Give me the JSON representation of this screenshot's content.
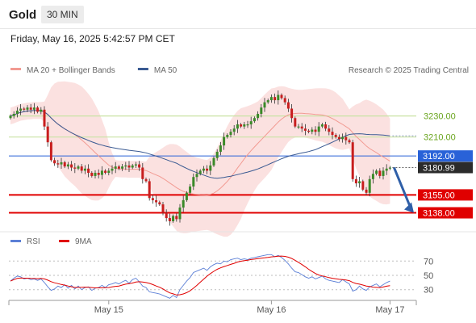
{
  "header": {
    "instrument": "Gold",
    "timeframe": "30 MIN",
    "datetime": "Friday, May 16, 2025 5:42:57 PM CET"
  },
  "chart_data": {
    "type": "candlestick",
    "credit": "Research © 2025 Trading Central",
    "legend": [
      {
        "name": "MA 20 + Bollinger Bands",
        "color": "#f29a92"
      },
      {
        "name": "MA 50",
        "color": "#3a5a92"
      }
    ],
    "y_range": [
      3120,
      3265
    ],
    "x_labels": [
      {
        "label": "May 15",
        "index": 29
      },
      {
        "label": "May 16",
        "index": 77
      },
      {
        "label": "May 17",
        "index": 112
      }
    ],
    "levels": [
      {
        "value": 3230.0,
        "label": "3230.00",
        "color": "#8cc63f",
        "kind": "line"
      },
      {
        "value": 3210.0,
        "label": "3210.00",
        "color": "#8cc63f",
        "kind": "line"
      },
      {
        "value": 3192.0,
        "label": "3192.00",
        "color": "#2962d8",
        "kind": "box"
      },
      {
        "value": 3180.99,
        "label": "3180.99",
        "color": "#2b2b2b",
        "kind": "box"
      },
      {
        "value": 3155.0,
        "label": "3155.00",
        "color": "#e00000",
        "kind": "box"
      },
      {
        "value": 3138.0,
        "label": "3138.00",
        "color": "#e00000",
        "kind": "box"
      }
    ],
    "forecast": {
      "from": 3181,
      "to": 3138
    },
    "closes": [
      3230,
      3232,
      3235,
      3237,
      3236,
      3238,
      3236,
      3238,
      3234,
      3236,
      3220,
      3205,
      3188,
      3185,
      3184,
      3186,
      3182,
      3184,
      3181,
      3180,
      3182,
      3178,
      3180,
      3176,
      3173,
      3176,
      3174,
      3178,
      3176,
      3178,
      3180,
      3182,
      3180,
      3182,
      3183,
      3181,
      3183,
      3184,
      3181,
      3170,
      3168,
      3152,
      3150,
      3148,
      3146,
      3138,
      3133,
      3130,
      3135,
      3132,
      3143,
      3150,
      3157,
      3163,
      3172,
      3175,
      3178,
      3180,
      3178,
      3183,
      3190,
      3196,
      3202,
      3210,
      3212,
      3215,
      3218,
      3222,
      3220,
      3222,
      3222,
      3225,
      3228,
      3232,
      3238,
      3243,
      3245,
      3248,
      3245,
      3250,
      3247,
      3243,
      3237,
      3228,
      3220,
      3220,
      3218,
      3216,
      3215,
      3217,
      3215,
      3220,
      3222,
      3218,
      3215,
      3212,
      3210,
      3208,
      3210,
      3207,
      3205,
      3170,
      3166,
      3168,
      3160,
      3157,
      3170,
      3175,
      3178,
      3173,
      3178,
      3180,
      3181
    ],
    "rsi": {
      "legend": [
        {
          "name": "RSI",
          "color": "#5b7fd6"
        },
        {
          "name": "9MA",
          "color": "#e00000"
        }
      ],
      "levels": [
        70,
        50,
        30
      ],
      "y_range": [
        15,
        85
      ],
      "values": [
        42,
        46,
        49,
        48,
        45,
        46,
        44,
        45,
        43,
        45,
        40,
        34,
        29,
        31,
        35,
        33,
        37,
        32,
        36,
        31,
        35,
        30,
        33,
        34,
        29,
        32,
        33,
        36,
        33,
        37,
        38,
        40,
        38,
        41,
        43,
        39,
        44,
        46,
        41,
        35,
        33,
        27,
        26,
        25,
        24,
        22,
        20,
        18,
        22,
        19,
        30,
        36,
        42,
        47,
        54,
        56,
        58,
        60,
        57,
        62,
        65,
        67,
        66,
        70,
        69,
        72,
        73,
        74,
        72,
        73,
        72,
        74,
        75,
        76,
        77,
        78,
        79,
        79,
        76,
        78,
        75,
        71,
        66,
        60,
        55,
        54,
        51,
        48,
        46,
        48,
        45,
        47,
        49,
        45,
        43,
        42,
        41,
        40,
        44,
        41,
        38,
        28,
        30,
        35,
        31,
        29,
        34,
        36,
        38,
        34,
        37,
        40,
        42
      ]
    }
  }
}
